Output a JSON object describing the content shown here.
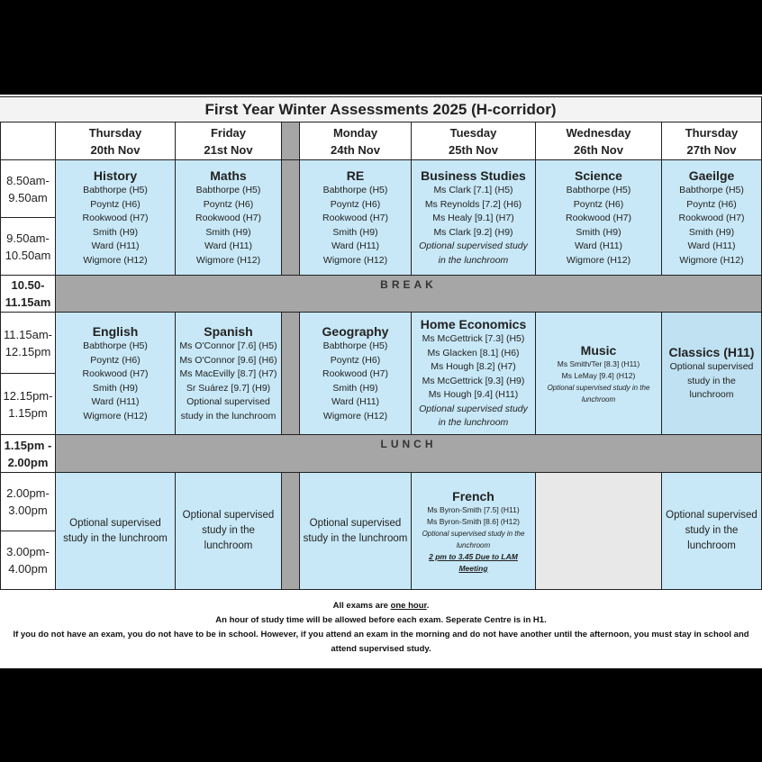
{
  "title": "First Year Winter Assessments 2025  (H-corridor)",
  "days": [
    {
      "day": "Thursday",
      "date": "20th Nov"
    },
    {
      "day": "Friday",
      "date": "21st Nov"
    },
    {
      "day": "Monday",
      "date": "24th Nov"
    },
    {
      "day": "Tuesday",
      "date": "25th Nov"
    },
    {
      "day": "Wednesday",
      "date": "26th Nov"
    },
    {
      "day": "Thursday",
      "date": "27th Nov"
    }
  ],
  "times": {
    "morning": [
      "8.50am-\n9.50am",
      "9.50am-\n10.50am"
    ],
    "break": "10.50-\n11.15am",
    "midday": [
      "11.15am-\n12.15pm",
      "12.15pm-\n1.15pm"
    ],
    "lunch": "1.15pm -\n2.00pm",
    "afternoon": [
      "2.00pm-\n3.00pm",
      "3.00pm-\n4.00pm"
    ]
  },
  "break_label": "BREAK",
  "lunch_label": "LUNCH",
  "colors": {
    "exam_cell": "#c8e8f7",
    "break_bar": "#a6a6a6",
    "empty_cell": "#e8e8e8"
  },
  "morning": [
    {
      "subject": "History",
      "lines": [
        {
          "text": "Babthorpe (H5)"
        },
        {
          "text": "Poyntz (H6)"
        },
        {
          "text": "Rookwood (H7)"
        },
        {
          "text": "Smith (H9)"
        },
        {
          "text": "Ward (H11)"
        },
        {
          "text": "Wigmore (H12)"
        }
      ]
    },
    {
      "subject": "Maths",
      "lines": [
        {
          "text": "Babthorpe (H5)"
        },
        {
          "text": "Poyntz (H6)"
        },
        {
          "text": "Rookwood (H7)"
        },
        {
          "text": "Smith (H9)"
        },
        {
          "text": "Ward (H11)"
        },
        {
          "text": "Wigmore (H12)"
        }
      ]
    },
    {
      "subject": "RE",
      "lines": [
        {
          "text": "Babthorpe (H5)"
        },
        {
          "text": "Poyntz (H6)"
        },
        {
          "text": "Rookwood (H7)"
        },
        {
          "text": "Smith (H9)"
        },
        {
          "text": "Ward (H11)"
        },
        {
          "text": "Wigmore (H12)"
        }
      ]
    },
    {
      "subject": "Business Studies",
      "lines": [
        {
          "text": "Ms Clark [7.1] (H5)"
        },
        {
          "text": "Ms Reynolds [7.2] (H6)"
        },
        {
          "text": "Ms Healy [9.1] (H7)"
        },
        {
          "text": "Ms Clark [9.2] (H9)"
        },
        {
          "text": "Optional supervised study",
          "style": "italic"
        },
        {
          "text": "in the lunchroom",
          "style": "italic"
        }
      ]
    },
    {
      "subject": "Science",
      "lines": [
        {
          "text": "Babthorpe (H5)"
        },
        {
          "text": "Poyntz (H6)"
        },
        {
          "text": "Rookwood (H7)"
        },
        {
          "text": "Smith (H9)"
        },
        {
          "text": "Ward (H11)"
        },
        {
          "text": "Wigmore (H12)"
        }
      ]
    },
    {
      "subject": "Gaeilge",
      "lines": [
        {
          "text": "Babthorpe (H5)"
        },
        {
          "text": "Poyntz (H6)"
        },
        {
          "text": "Rookwood (H7)"
        },
        {
          "text": "Smith (H9)"
        },
        {
          "text": "Ward (H11)"
        },
        {
          "text": "Wigmore (H12)"
        }
      ]
    }
  ],
  "midday": [
    {
      "subject": "English",
      "lines": [
        {
          "text": "Babthorpe (H5)"
        },
        {
          "text": "Poyntz (H6)"
        },
        {
          "text": "Rookwood (H7)"
        },
        {
          "text": "Smith (H9)"
        },
        {
          "text": "Ward (H11)"
        },
        {
          "text": "Wigmore (H12)"
        }
      ]
    },
    {
      "subject": "Spanish",
      "lines": [
        {
          "text": "Ms O'Connor [7.6] (H5)"
        },
        {
          "text": "Ms O'Connor [9.6] (H6)"
        },
        {
          "text": "Ms MacEvilly [8.7] (H7)"
        },
        {
          "text": "Sr Suárez [9.7] (H9)"
        },
        {
          "text": "Optional supervised"
        },
        {
          "text": "study in the lunchroom"
        }
      ]
    },
    {
      "subject": "Geography",
      "lines": [
        {
          "text": "Babthorpe (H5)"
        },
        {
          "text": "Poyntz (H6)"
        },
        {
          "text": "Rookwood (H7)"
        },
        {
          "text": "Smith (H9)"
        },
        {
          "text": "Ward (H11)"
        },
        {
          "text": "Wigmore (H12)"
        }
      ]
    },
    {
      "subject": "Home Economics",
      "lines": [
        {
          "text": "Ms McGettrick [7.3] (H5)"
        },
        {
          "text": "Ms Glacken [8.1] (H6)"
        },
        {
          "text": "Ms Hough [8.2] (H7)"
        },
        {
          "text": "Ms McGettrick [9.3] (H9)"
        },
        {
          "text": "Ms Hough [9.4] (H11)"
        },
        {
          "text": "Optional supervised study",
          "style": "italic"
        },
        {
          "text": "in the lunchroom",
          "style": "italic"
        }
      ]
    },
    {
      "subject": "Music",
      "lines": [
        {
          "text": "Ms Smith/Ter [8.3] (H11)",
          "style": "small"
        },
        {
          "text": "Ms LeMay [9.4] (H12)",
          "style": "small"
        },
        {
          "text": "Optional supervised study in the lunchroom",
          "style": "small-italic"
        }
      ]
    },
    {
      "subject": "Classics (H11)",
      "lines": [
        {
          "text": "Optional supervised"
        },
        {
          "text": "study in the"
        },
        {
          "text": "lunchroom"
        }
      ]
    }
  ],
  "afternoon": [
    {
      "subject": "",
      "lines": [
        {
          "text": "Optional supervised study in the lunchroom",
          "style": "wrap"
        }
      ]
    },
    {
      "subject": "",
      "lines": [
        {
          "text": "Optional supervised study in the lunchroom",
          "style": "wrap"
        }
      ]
    },
    {
      "subject": "",
      "lines": [
        {
          "text": "Optional supervised study in the lunchroom",
          "style": "wrap"
        }
      ]
    },
    {
      "subject": "French",
      "lines": [
        {
          "text": "Ms Byron-Smith [7.5] (H11)",
          "style": "small"
        },
        {
          "text": "Ms Byron-Smith [8.6] (H12)",
          "style": "small"
        },
        {
          "text": "Optional supervised study in the lunchroom",
          "style": "small-italic"
        },
        {
          "text": "2 pm to 3.45 Due to LAM Meeting",
          "style": "note"
        }
      ]
    },
    null,
    {
      "subject": "",
      "lines": [
        {
          "text": "Optional supervised study in the lunchroom",
          "style": "wrap"
        }
      ]
    }
  ],
  "footer": {
    "line1_pre": "All exams are ",
    "line1_underlined": "one hour",
    "line1_post": ".",
    "line2": "An hour of study time will be allowed before each exam. Seperate Centre is in H1.",
    "line3": "If you do not have an exam, you do not have to be in school. However, if you attend an exam in the morning and do not have another until the afternoon, you must stay in school and attend supervised study."
  }
}
